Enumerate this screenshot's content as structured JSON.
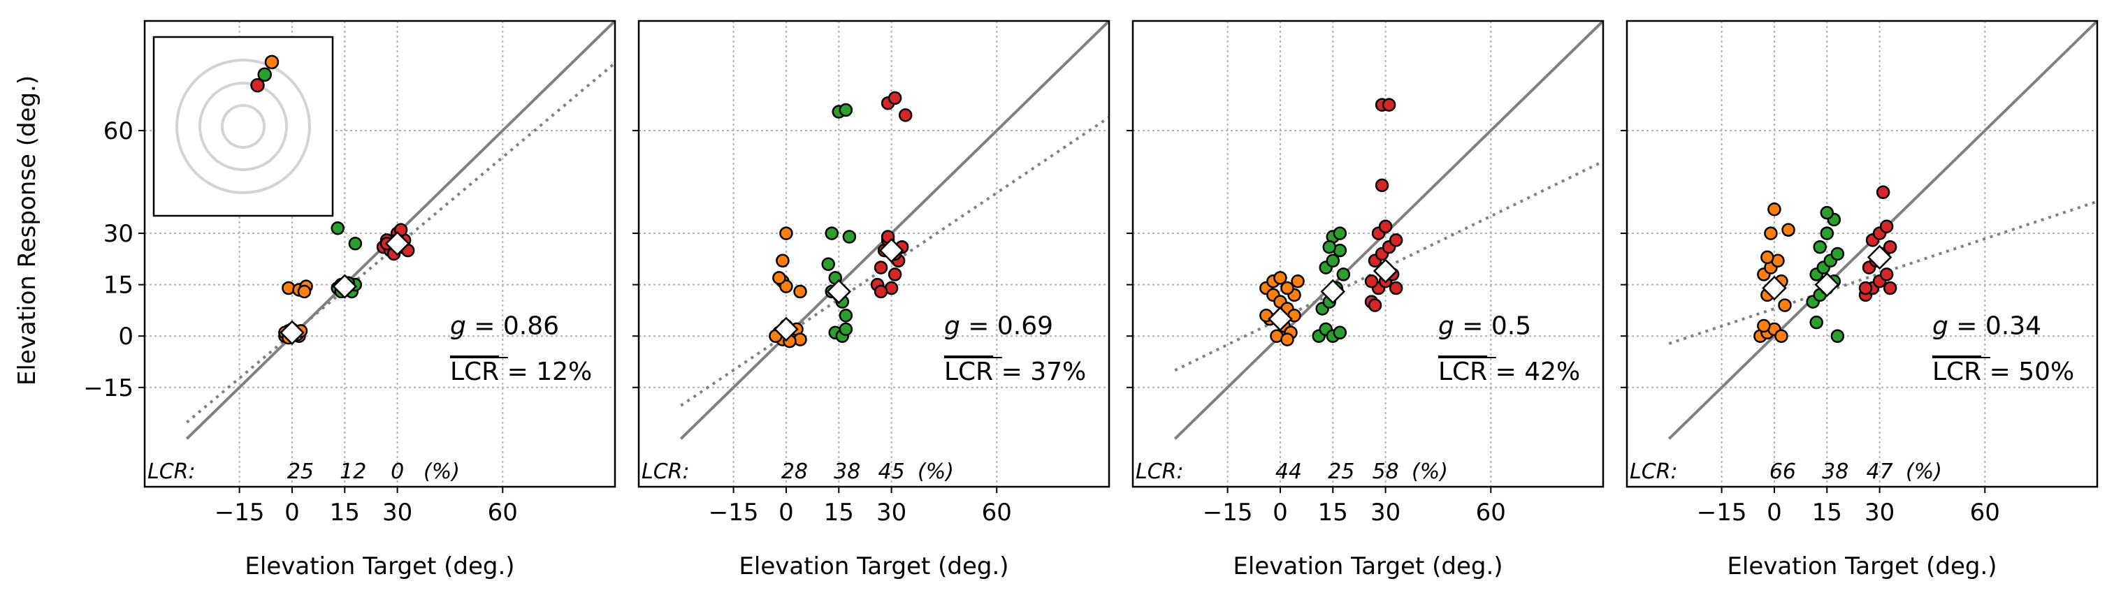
{
  "figure": {
    "ylabel": "Elevation Response (deg.)",
    "xlabel": "Elevation Target (deg.)",
    "lcr_prefix": "LCR:",
    "lcr_unit": "(%)"
  },
  "colors": {
    "orange": "#ff7f0e",
    "green": "#2ca02c",
    "red": "#d62728",
    "identity_line": "#808080",
    "fit_line": "#808080",
    "grid": "#b0b0b0",
    "inset_circles": "#d3d3d3"
  },
  "chart_data": [
    {
      "type": "scatter",
      "xlabel": "Elevation Target (deg.)",
      "ylabel": "Elevation Response (deg.)",
      "xlim": [
        -42,
        92
      ],
      "ylim": [
        -44,
        92
      ],
      "xticks": [
        -15,
        0,
        15,
        30,
        60
      ],
      "yticks": [
        -15,
        0,
        15,
        30,
        60
      ],
      "grid": true,
      "g_label": "g = 0.86",
      "lcr_mean_label": "LCR = 12%",
      "lcr_values": [
        "25",
        "12",
        "0"
      ],
      "fit_slope": 0.86,
      "fit_intercept": 0.6,
      "means": [
        {
          "x": 0,
          "y": 1
        },
        {
          "x": 15,
          "y": 14.5
        },
        {
          "x": 30,
          "y": 27
        }
      ],
      "series": [
        {
          "color": "orange",
          "points": [
            [
              -2,
              0
            ],
            [
              -1,
              1.5
            ],
            [
              0,
              0.5
            ],
            [
              1,
              1
            ],
            [
              2,
              0
            ],
            [
              -2,
              1
            ],
            [
              0,
              2
            ],
            [
              1.5,
              0.5
            ],
            [
              -1,
              -0.5
            ],
            [
              2.5,
              1.5
            ],
            [
              -1,
              14
            ],
            [
              2,
              13.5
            ],
            [
              4,
              14.5
            ],
            [
              3.5,
              13
            ]
          ]
        },
        {
          "color": "green",
          "points": [
            [
              13,
              14
            ],
            [
              14,
              15
            ],
            [
              15,
              13.5
            ],
            [
              16,
              14.5
            ],
            [
              17,
              13
            ],
            [
              18,
              15
            ],
            [
              16,
              15.5
            ],
            [
              14,
              13
            ],
            [
              13,
              31.5
            ],
            [
              18,
              27
            ]
          ]
        },
        {
          "color": "red",
          "points": [
            [
              26,
              26
            ],
            [
              27,
              28
            ],
            [
              28,
              25
            ],
            [
              29,
              27
            ],
            [
              30,
              30
            ],
            [
              31,
              26
            ],
            [
              32,
              28
            ],
            [
              33,
              25
            ],
            [
              27,
              27
            ],
            [
              29,
              24
            ],
            [
              30,
              28
            ],
            [
              31,
              31
            ]
          ]
        }
      ],
      "inset_points": [
        {
          "color": "orange",
          "x": 0.66,
          "y": 0.86
        },
        {
          "color": "green",
          "x": 0.62,
          "y": 0.79
        },
        {
          "color": "red",
          "x": 0.58,
          "y": 0.73
        }
      ]
    },
    {
      "type": "scatter",
      "xlabel": "Elevation Target (deg.)",
      "xlim": [
        -42,
        92
      ],
      "ylim": [
        -44,
        92
      ],
      "xticks": [
        -15,
        0,
        15,
        30,
        60
      ],
      "yticks": [
        -15,
        0,
        15,
        30,
        60
      ],
      "grid": true,
      "g_label": "g = 0.69",
      "lcr_mean_label": "LCR = 37%",
      "lcr_values": [
        "28",
        "38",
        "45"
      ],
      "fit_slope": 0.69,
      "fit_intercept": 0.4,
      "means": [
        {
          "x": 0,
          "y": 2
        },
        {
          "x": 15,
          "y": 13
        },
        {
          "x": 30,
          "y": 25
        }
      ],
      "series": [
        {
          "color": "orange",
          "points": [
            [
              -2,
              1
            ],
            [
              0,
              3
            ],
            [
              2,
              0
            ],
            [
              -1,
              -1
            ],
            [
              3,
              2
            ],
            [
              4,
              -1
            ],
            [
              1,
              -1.5
            ],
            [
              -3,
              0
            ],
            [
              -1,
              16
            ],
            [
              0,
              14.5
            ],
            [
              -2,
              17
            ],
            [
              -1,
              22
            ],
            [
              0,
              30
            ],
            [
              4,
              13
            ]
          ]
        },
        {
          "color": "green",
          "points": [
            [
              12,
              21
            ],
            [
              13,
              30
            ],
            [
              14,
              17
            ],
            [
              15,
              12
            ],
            [
              16,
              10
            ],
            [
              17,
              6
            ],
            [
              14,
              1
            ],
            [
              16,
              0
            ],
            [
              17,
              2
            ],
            [
              13,
              13
            ],
            [
              18,
              29
            ],
            [
              15,
              65.5
            ],
            [
              17,
              66
            ]
          ]
        },
        {
          "color": "red",
          "points": [
            [
              26,
              15
            ],
            [
              27,
              20
            ],
            [
              28,
              25
            ],
            [
              29,
              28
            ],
            [
              30,
              14
            ],
            [
              31,
              18
            ],
            [
              32,
              22
            ],
            [
              33,
              26
            ],
            [
              27,
              13
            ],
            [
              29,
              29
            ],
            [
              31,
              24
            ],
            [
              29,
              68
            ],
            [
              31,
              69.5
            ],
            [
              34,
              64.5
            ]
          ]
        }
      ],
      "inset_points": []
    },
    {
      "type": "scatter",
      "xlabel": "Elevation Target (deg.)",
      "xlim": [
        -42,
        92
      ],
      "ylim": [
        -44,
        92
      ],
      "xticks": [
        -15,
        0,
        15,
        30,
        60
      ],
      "yticks": [
        -15,
        0,
        15,
        30,
        60
      ],
      "grid": true,
      "g_label": "g = 0.5",
      "lcr_mean_label": "LCR = 42%",
      "lcr_values": [
        "44",
        "25",
        "58"
      ],
      "fit_slope": 0.5,
      "fit_intercept": 5,
      "means": [
        {
          "x": 0,
          "y": 5
        },
        {
          "x": 15,
          "y": 13
        },
        {
          "x": 30,
          "y": 19
        }
      ],
      "series": [
        {
          "color": "orange",
          "points": [
            [
              -4,
              14
            ],
            [
              -2,
              12
            ],
            [
              0,
              10
            ],
            [
              2,
              8
            ],
            [
              4,
              6
            ],
            [
              -3,
              5
            ],
            [
              1,
              3
            ],
            [
              3,
              1
            ],
            [
              -1,
              0
            ],
            [
              2,
              -1
            ],
            [
              4,
              12
            ],
            [
              5,
              16
            ],
            [
              -2,
              16
            ],
            [
              0,
              17
            ],
            [
              2,
              14
            ],
            [
              -4,
              6
            ]
          ]
        },
        {
          "color": "green",
          "points": [
            [
              11,
              0
            ],
            [
              13,
              2
            ],
            [
              15,
              0
            ],
            [
              17,
              1
            ],
            [
              12,
              8
            ],
            [
              14,
              10
            ],
            [
              16,
              14
            ],
            [
              18,
              18
            ],
            [
              13,
              20
            ],
            [
              15,
              22
            ],
            [
              17,
              25
            ],
            [
              15,
              29
            ],
            [
              17,
              30
            ],
            [
              14,
              26
            ]
          ]
        },
        {
          "color": "red",
          "points": [
            [
              26,
              10
            ],
            [
              28,
              14
            ],
            [
              30,
              16
            ],
            [
              32,
              18
            ],
            [
              27,
              22
            ],
            [
              29,
              24
            ],
            [
              31,
              26
            ],
            [
              33,
              28
            ],
            [
              28,
              30
            ],
            [
              30,
              32
            ],
            [
              29,
              44
            ],
            [
              29,
              67.5
            ],
            [
              31,
              67.5
            ],
            [
              26,
              16
            ],
            [
              33,
              14
            ],
            [
              27,
              9
            ]
          ]
        }
      ],
      "inset_points": []
    },
    {
      "type": "scatter",
      "xlabel": "Elevation Target (deg.)",
      "xlim": [
        -42,
        92
      ],
      "ylim": [
        -44,
        92
      ],
      "xticks": [
        -15,
        0,
        15,
        30,
        60
      ],
      "yticks": [
        -15,
        0,
        15,
        30,
        60
      ],
      "grid": true,
      "g_label": "g = 0.34",
      "lcr_mean_label": "LCR = 50%",
      "lcr_values": [
        "66",
        "38",
        "47"
      ],
      "fit_slope": 0.34,
      "fit_intercept": 8,
      "means": [
        {
          "x": 0,
          "y": 14
        },
        {
          "x": 15,
          "y": 15
        },
        {
          "x": 30,
          "y": 23
        }
      ],
      "series": [
        {
          "color": "orange",
          "points": [
            [
              -4,
              0
            ],
            [
              -2,
              1
            ],
            [
              0,
              2
            ],
            [
              2,
              0
            ],
            [
              -3,
              3
            ],
            [
              -2,
              12
            ],
            [
              0,
              14
            ],
            [
              2,
              16
            ],
            [
              -3,
              18
            ],
            [
              -1,
              20
            ],
            [
              1,
              22
            ],
            [
              -2,
              23
            ],
            [
              -1,
              30
            ],
            [
              0,
              37
            ],
            [
              4,
              31
            ],
            [
              3,
              9
            ]
          ]
        },
        {
          "color": "green",
          "points": [
            [
              11,
              10
            ],
            [
              13,
              12
            ],
            [
              15,
              14
            ],
            [
              17,
              16
            ],
            [
              12,
              18
            ],
            [
              14,
              20
            ],
            [
              16,
              22
            ],
            [
              18,
              24
            ],
            [
              13,
              26
            ],
            [
              15,
              30
            ],
            [
              17,
              34
            ],
            [
              15,
              36
            ],
            [
              12,
              4
            ],
            [
              18,
              0
            ]
          ]
        },
        {
          "color": "red",
          "points": [
            [
              26,
              12
            ],
            [
              28,
              14
            ],
            [
              30,
              16
            ],
            [
              32,
              18
            ],
            [
              27,
              20
            ],
            [
              29,
              22
            ],
            [
              31,
              24
            ],
            [
              33,
              26
            ],
            [
              28,
              28
            ],
            [
              30,
              30
            ],
            [
              32,
              32
            ],
            [
              31,
              42
            ],
            [
              26,
              14
            ],
            [
              33,
              14
            ]
          ]
        }
      ],
      "inset_points": []
    }
  ]
}
